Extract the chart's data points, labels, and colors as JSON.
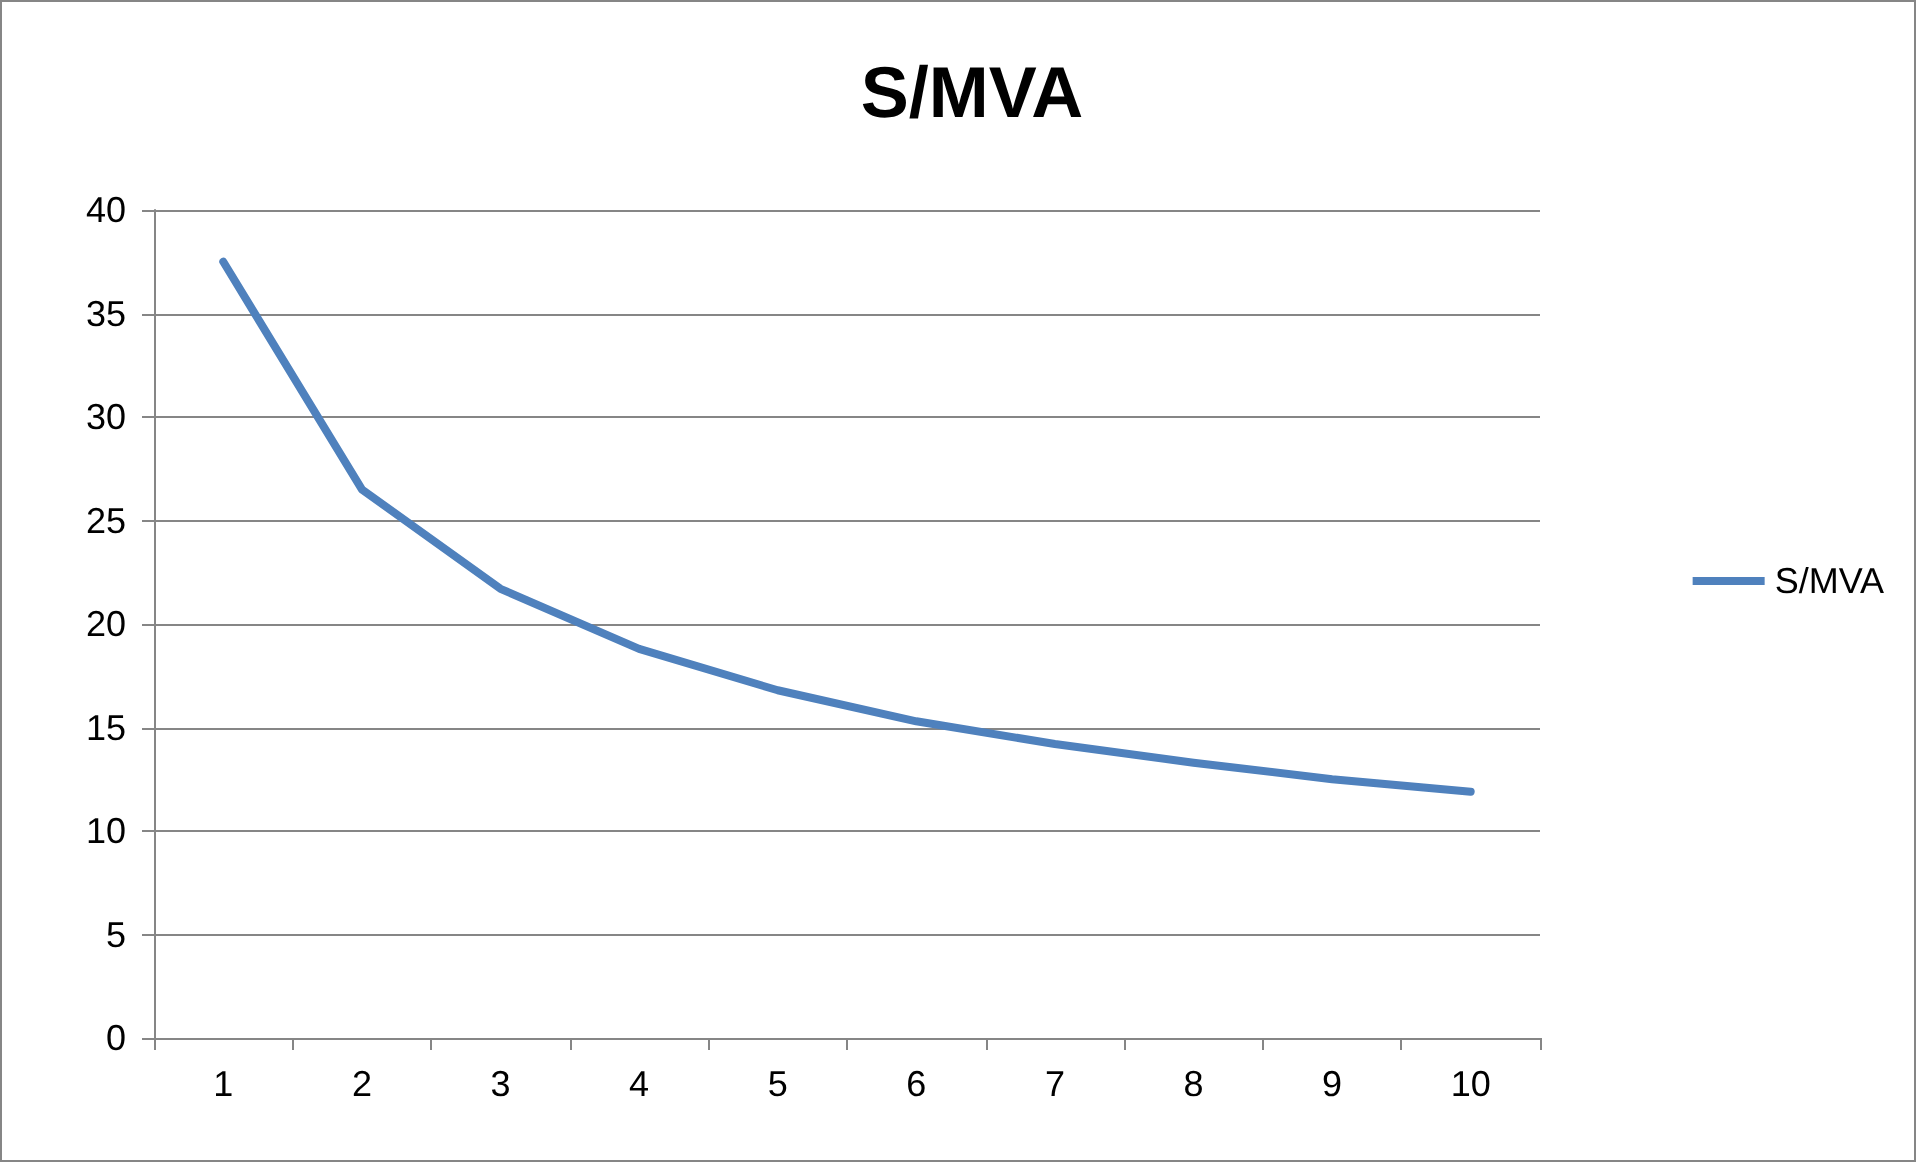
{
  "chart_data": {
    "type": "line",
    "title": "S/MVA",
    "categories": [
      "1",
      "2",
      "3",
      "4",
      "5",
      "6",
      "7",
      "8",
      "9",
      "10"
    ],
    "series": [
      {
        "name": "S/MVA",
        "color": "#4f81bd",
        "values": [
          37.5,
          26.5,
          21.7,
          18.8,
          16.8,
          15.3,
          14.2,
          13.3,
          12.5,
          11.9
        ]
      }
    ],
    "ylim": [
      0,
      40
    ],
    "yticks": [
      0,
      5,
      10,
      15,
      20,
      25,
      30,
      35,
      40
    ],
    "grid": "y",
    "legend": "right",
    "marker": "none",
    "line_style": "solid"
  }
}
